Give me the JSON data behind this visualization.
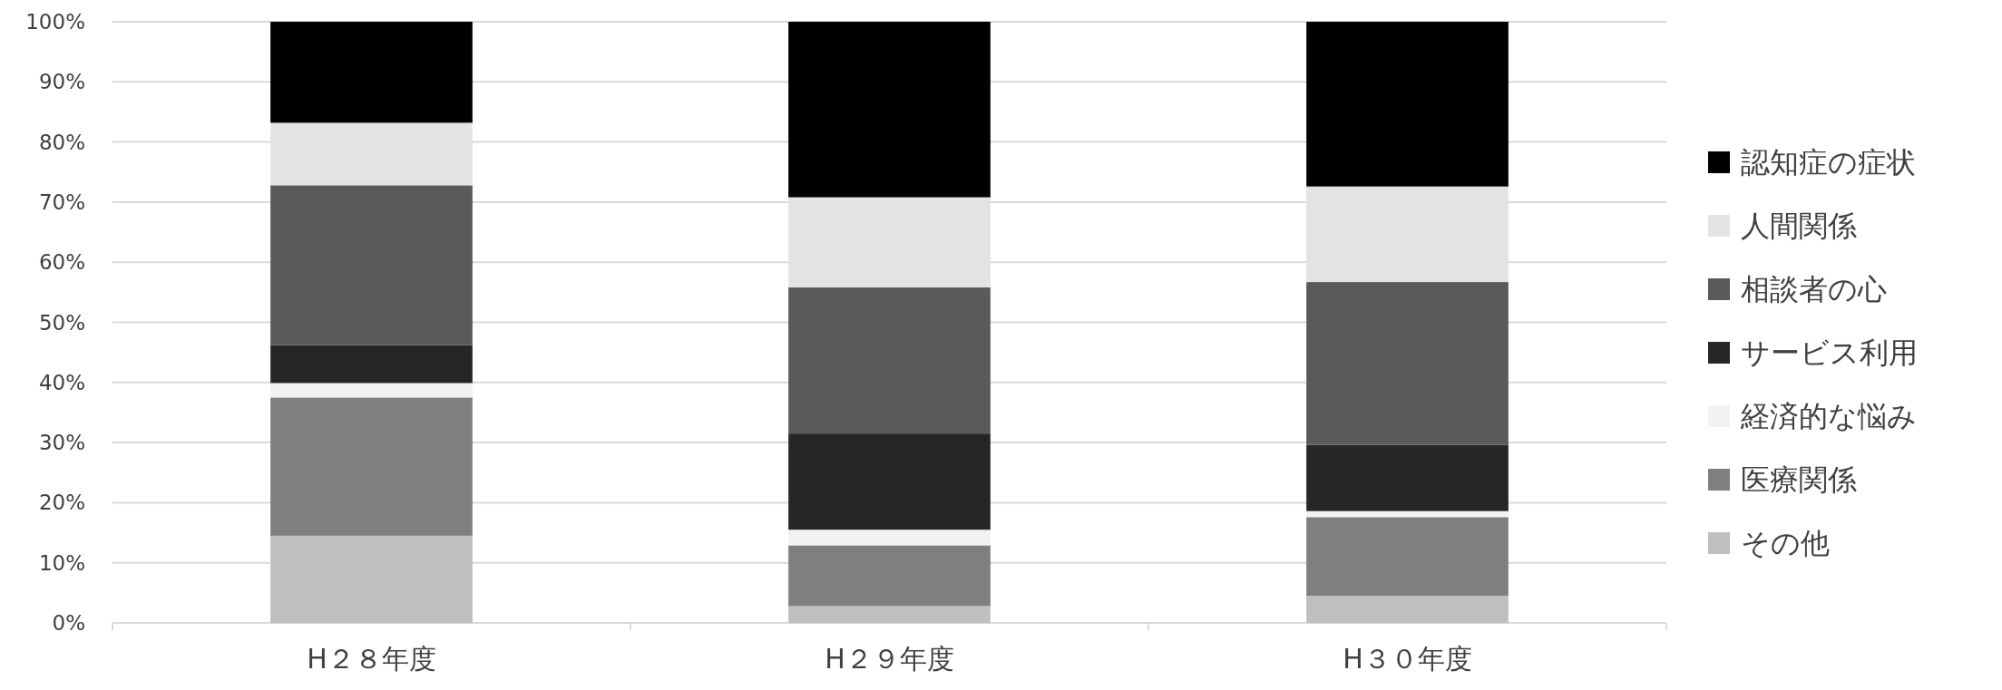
{
  "chart_data": {
    "type": "bar",
    "stacked": true,
    "categories": [
      "H２８年度",
      "H２９年度",
      "H３０年度"
    ],
    "series": [
      {
        "name": "その他",
        "color": "#bfbfbf",
        "values": [
          14.5,
          2.8,
          4.5
        ]
      },
      {
        "name": "医療関係",
        "color": "#7f7f7f",
        "values": [
          23.0,
          10.1,
          13.1
        ]
      },
      {
        "name": "経済的な悩み",
        "color": "#f2f2f2",
        "values": [
          2.4,
          2.6,
          1.0
        ]
      },
      {
        "name": "サービス利用",
        "color": "#262626",
        "values": [
          6.3,
          16.0,
          11.0
        ]
      },
      {
        "name": "相談者の心",
        "color": "#5a5a5a",
        "values": [
          26.6,
          24.3,
          27.1
        ]
      },
      {
        "name": "人間関係",
        "color": "#e3e3e3",
        "values": [
          10.4,
          15.0,
          15.9
        ]
      },
      {
        "name": "認知症の症状",
        "color": "#000000",
        "values": [
          16.8,
          29.2,
          27.4
        ]
      }
    ],
    "ylim": [
      0,
      100
    ],
    "yticks": [
      {
        "value": 0,
        "label": "0%"
      },
      {
        "value": 10,
        "label": "10%"
      },
      {
        "value": 20,
        "label": "20%"
      },
      {
        "value": 30,
        "label": "30%"
      },
      {
        "value": 40,
        "label": "40%"
      },
      {
        "value": 50,
        "label": "50%"
      },
      {
        "value": 60,
        "label": "60%"
      },
      {
        "value": 70,
        "label": "70%"
      },
      {
        "value": 80,
        "label": "80%"
      },
      {
        "value": 90,
        "label": "90%"
      },
      {
        "value": 100,
        "label": "100%"
      }
    ],
    "grid": "y",
    "legend": "right"
  }
}
